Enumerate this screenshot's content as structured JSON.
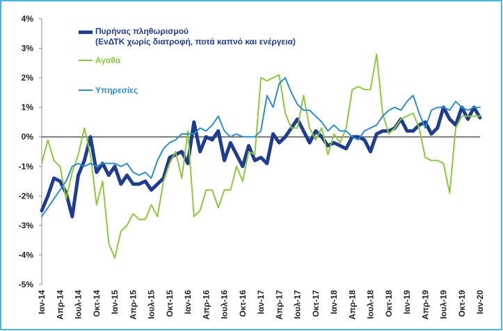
{
  "chart_data": {
    "type": "line",
    "categories": [
      "Ιαν-14",
      null,
      null,
      "Απρ-14",
      null,
      null,
      "Ιουλ-14",
      null,
      null,
      "Οκτ-14",
      null,
      null,
      "Ιαν-15",
      null,
      null,
      "Απρ-15",
      null,
      null,
      "Ιουλ-15",
      null,
      null,
      "Οκτ-15",
      null,
      null,
      "Ιαν-16",
      null,
      null,
      "Απρ-16",
      null,
      null,
      "Ιουλ-16",
      null,
      null,
      "Οκτ-16",
      null,
      null,
      "Ιαν-17",
      null,
      null,
      "Απρ-17",
      null,
      null,
      "Ιουλ-17",
      null,
      null,
      "Οκτ-17",
      null,
      null,
      "Ιαν-18",
      null,
      null,
      "Απρ-18",
      null,
      null,
      "Ιουλ-18",
      null,
      null,
      "Οκτ-18",
      null,
      null,
      "Ιαν-19",
      null,
      null,
      "Απρ-19",
      null,
      null,
      "Ιουλ-19",
      null,
      null,
      "Οκτ-19",
      null,
      null,
      "Ιαν-20"
    ],
    "series": [
      {
        "name": "Πυρήνας πληθωρισμού\n(ΕνΔΤΚ χωρίς διατροφή, ποτά καπνό και ενέργεια)",
        "color": "#1f3d8c",
        "width": 5,
        "values": [
          -2.5,
          -2.0,
          -1.4,
          -1.5,
          -1.9,
          -2.7,
          -1.3,
          -0.8,
          0.0,
          -1.2,
          -0.9,
          -1.3,
          -1.0,
          -1.6,
          -1.3,
          -1.6,
          -1.6,
          -1.5,
          -1.8,
          -1.6,
          -1.4,
          -0.7,
          -0.6,
          -0.5,
          -0.9,
          0.5,
          -0.5,
          0.0,
          -0.1,
          0.2,
          -0.8,
          -0.2,
          -0.6,
          -1.0,
          -0.3,
          -0.8,
          -0.7,
          -0.9,
          0.1,
          -0.2,
          0.0,
          0.3,
          0.6,
          0.2,
          -0.2,
          0.2,
          0.0,
          -0.3,
          -0.2,
          -0.3,
          -0.4,
          0.0,
          0.0,
          -0.1,
          -0.5,
          0.1,
          0.2,
          0.2,
          0.3,
          0.6,
          0.2,
          0.2,
          0.4,
          0.5,
          0.1,
          0.3,
          1.0,
          0.6,
          0.4,
          1.0,
          0.6,
          1.0,
          0.65
        ]
      },
      {
        "name": "Αγαθά",
        "color": "#8dc63f",
        "width": 2,
        "values": [
          -0.9,
          -0.1,
          -0.8,
          -1.0,
          -2.1,
          -1.2,
          -0.6,
          0.3,
          -0.6,
          -2.3,
          -1.5,
          -3.6,
          -4.1,
          -3.2,
          -3.0,
          -2.6,
          -2.8,
          -2.8,
          -2.3,
          -2.7,
          -1.5,
          -0.9,
          -0.5,
          -1.4,
          0.2,
          -2.7,
          -2.5,
          -1.8,
          -1.8,
          -2.4,
          -1.8,
          -1.8,
          -1.0,
          -1.5,
          -0.5,
          -0.6,
          2.0,
          1.9,
          2.0,
          2.1,
          0.8,
          0.3,
          0.3,
          1.4,
          0.3,
          -0.1,
          0.3,
          -0.6,
          0.1,
          -0.2,
          0.3,
          1.6,
          1.7,
          1.6,
          1.6,
          2.8,
          0.8,
          0.1,
          0.3,
          0.6,
          0.7,
          0.8,
          0.3,
          -0.7,
          -0.8,
          -0.8,
          -0.9,
          -1.9,
          0.3,
          0.7,
          0.7,
          0.7,
          0.7
        ]
      },
      {
        "name": "Υπηρεσίες",
        "color": "#2e8bc9",
        "width": 2,
        "values": [
          -2.7,
          -2.4,
          -2.1,
          -1.8,
          -1.5,
          -1.0,
          -0.9,
          -1.0,
          -0.9,
          -1.0,
          -0.9,
          -0.9,
          -0.9,
          -1.0,
          -0.9,
          -1.2,
          -1.3,
          -1.2,
          -1.4,
          -0.8,
          -0.4,
          -0.2,
          -0.1,
          0.1,
          0.1,
          0.1,
          0.3,
          0.2,
          0.4,
          0.7,
          0.2,
          0.0,
          0.1,
          0.0,
          0.0,
          0.0,
          0.2,
          1.4,
          1.0,
          1.8,
          2.0,
          1.5,
          1.1,
          0.9,
          0.9,
          0.7,
          0.5,
          0.2,
          0.4,
          0.2,
          0.2,
          0.0,
          -0.1,
          0.2,
          0.3,
          0.4,
          0.7,
          0.9,
          1.0,
          0.9,
          1.2,
          1.4,
          0.8,
          0.3,
          0.9,
          1.0,
          1.0,
          0.9,
          1.2,
          1.0,
          0.9,
          1.0,
          1.0
        ]
      }
    ],
    "ylim": [
      -5,
      4
    ],
    "yticks": [
      {
        "value": -5,
        "label": "-5%"
      },
      {
        "value": -4,
        "label": "-4%"
      },
      {
        "value": -3,
        "label": "-3%"
      },
      {
        "value": -2,
        "label": "-2%"
      },
      {
        "value": -1,
        "label": "-1%"
      },
      {
        "value": 0,
        "label": "0%"
      },
      {
        "value": 1,
        "label": "1%"
      },
      {
        "value": 2,
        "label": "2%"
      },
      {
        "value": 3,
        "label": "3%"
      },
      {
        "value": 4,
        "label": "4%"
      }
    ]
  }
}
